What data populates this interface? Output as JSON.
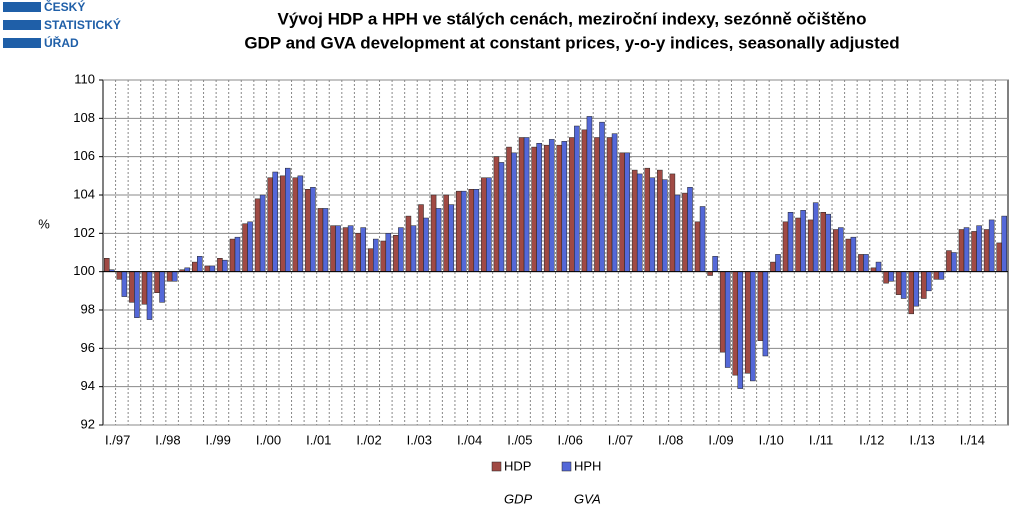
{
  "logo": {
    "lines": [
      "ČESKÝ",
      "STATISTICKÝ",
      "ÚŘAD"
    ]
  },
  "chart_data": {
    "type": "bar",
    "title": "Vývoj HDP a HPH ve stálých cenách, meziroční indexy, sezónně očištěno",
    "subtitle": "GDP and GVA development at constant prices, y-o-y indices, seasonally adjusted",
    "y_label": "%",
    "baseline": 100,
    "categories": [
      "I./97",
      null,
      null,
      null,
      "I./98",
      null,
      null,
      null,
      "I./99",
      null,
      null,
      null,
      "I./00",
      null,
      null,
      null,
      "I./01",
      null,
      null,
      null,
      "I./02",
      null,
      null,
      null,
      "I./03",
      null,
      null,
      null,
      "I./04",
      null,
      null,
      null,
      "I./05",
      null,
      null,
      null,
      "I./06",
      null,
      null,
      null,
      "I./07",
      null,
      null,
      null,
      "I./08",
      null,
      null,
      null,
      "I./09",
      null,
      null,
      null,
      "I./10",
      null,
      null,
      null,
      "I./11",
      null,
      null,
      null,
      "I./12",
      null,
      null,
      null,
      "I./13",
      null,
      null,
      null,
      "I./14",
      null,
      null,
      null
    ],
    "series": [
      {
        "name": "HDP",
        "color": "#a04a44",
        "values": [
          100.7,
          99.6,
          98.4,
          98.3,
          98.9,
          99.5,
          100.1,
          100.5,
          100.3,
          100.7,
          101.7,
          102.5,
          103.8,
          104.9,
          105.0,
          104.9,
          104.3,
          103.3,
          102.4,
          102.3,
          102.0,
          101.2,
          101.6,
          101.9,
          102.9,
          103.5,
          104.0,
          104.0,
          104.2,
          104.3,
          104.9,
          106.0,
          106.5,
          107.0,
          106.5,
          106.6,
          106.6,
          107.0,
          107.4,
          107.0,
          107.0,
          106.2,
          105.3,
          105.4,
          105.3,
          105.1,
          104.1,
          102.6,
          99.8,
          95.8,
          94.6,
          94.7,
          96.4,
          100.5,
          102.6,
          102.8,
          102.7,
          103.1,
          102.2,
          101.7,
          100.9,
          100.2,
          99.4,
          98.8,
          97.8,
          98.6,
          99.6,
          101.1,
          102.2,
          102.1,
          102.2,
          101.5
        ]
      },
      {
        "name": "HPH",
        "color": "#5468d8",
        "values": [
          100.1,
          98.7,
          97.6,
          97.5,
          98.4,
          99.5,
          100.2,
          100.8,
          100.3,
          100.6,
          101.8,
          102.6,
          104.0,
          105.2,
          105.4,
          105.0,
          104.4,
          103.3,
          102.4,
          102.4,
          102.3,
          101.7,
          102.0,
          102.3,
          102.4,
          102.8,
          103.3,
          103.5,
          104.2,
          104.3,
          104.9,
          105.7,
          106.2,
          107.0,
          106.7,
          106.9,
          106.8,
          107.6,
          108.1,
          107.8,
          107.2,
          106.2,
          105.1,
          104.9,
          104.8,
          104.0,
          104.4,
          103.4,
          100.8,
          95.0,
          93.9,
          94.3,
          95.6,
          100.9,
          103.1,
          103.2,
          103.6,
          103.0,
          102.3,
          101.8,
          100.9,
          100.5,
          99.5,
          98.6,
          98.2,
          99.0,
          99.6,
          101.0,
          102.3,
          102.4,
          102.7,
          102.9
        ]
      }
    ],
    "legend_translations": [
      "GDP",
      "GVA"
    ],
    "ylim": [
      92,
      110
    ],
    "yticks": [
      92,
      94,
      96,
      98,
      100,
      102,
      104,
      106,
      108,
      110
    ],
    "grid": true
  }
}
